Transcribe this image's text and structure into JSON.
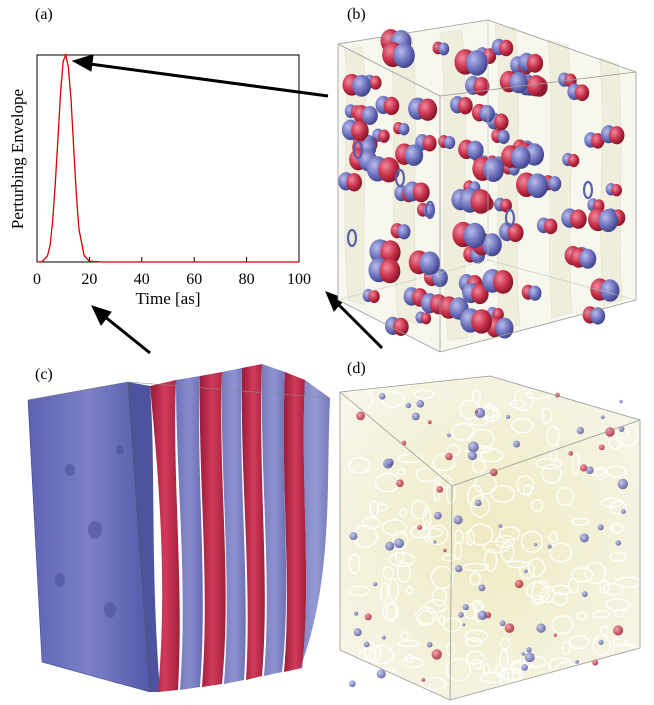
{
  "panels": {
    "a": "(a)",
    "b": "(b)",
    "c": "(c)",
    "d": "(d)"
  },
  "colors": {
    "pulse": "#d40000",
    "red_lobe": "#c8324a",
    "blue_lobe": "#6f74bf",
    "yellow_volume": "#f3f1d8",
    "frame": "#000000"
  },
  "chart_data": {
    "type": "line",
    "title": "",
    "xlabel": "Time [as]",
    "ylabel": "Perturbing Envelope",
    "xlim": [
      0,
      100
    ],
    "ylim": [
      0,
      1
    ],
    "xticks": [
      0,
      20,
      40,
      60,
      80,
      100
    ],
    "xtick_labels": [
      "0",
      "20",
      "40",
      "60",
      "80",
      "100"
    ],
    "yticks": [],
    "grid": false,
    "legend": "none",
    "series": [
      {
        "color": "#d40000",
        "x": [
          0,
          2,
          4,
          5,
          6,
          7,
          8,
          9,
          10,
          11,
          12,
          13,
          14,
          15,
          16,
          18,
          20,
          25,
          30,
          40,
          50,
          60,
          70,
          80,
          90,
          100
        ],
        "y": [
          0.0,
          0.002,
          0.03,
          0.08,
          0.2,
          0.38,
          0.6,
          0.82,
          0.97,
          1.0,
          0.94,
          0.78,
          0.55,
          0.33,
          0.16,
          0.03,
          0.004,
          0,
          0,
          0,
          0,
          0,
          0,
          0,
          0,
          0
        ]
      }
    ]
  }
}
